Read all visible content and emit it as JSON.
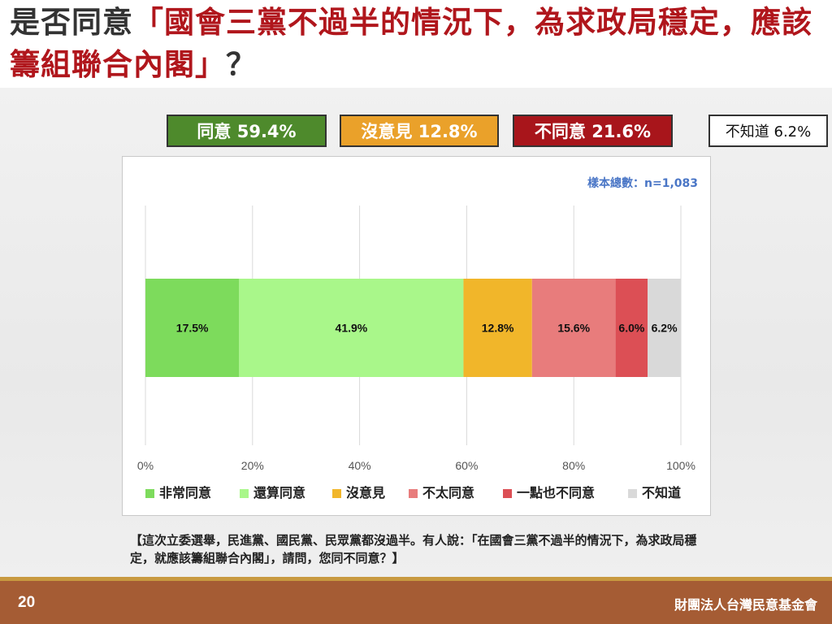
{
  "title": {
    "prefix": "是否同意",
    "quote": "「國會三黨不過半的情況下，為求政局穩定，應該籌組聯合內閣」",
    "suffix": "？"
  },
  "summary": [
    {
      "label": "同意 59.4%",
      "bg": "#4e8a2c",
      "fg": "#ffffff"
    },
    {
      "label": "沒意見 12.8%",
      "bg": "#eaa12a",
      "fg": "#ffffff"
    },
    {
      "label": "不同意 21.6%",
      "bg": "#a8151b",
      "fg": "#ffffff"
    },
    {
      "label": "不知道 6.2%",
      "bg": "#ffffff",
      "fg": "#111111"
    }
  ],
  "sample_note": "樣本總數：n=1,083",
  "question_note": "【這次立委選舉，民進黨、國民黨、民眾黨都沒過半。有人說：「在國會三黨不過半的情況下，為求政局穩定，就應該籌組聯合內閣」，請問，您同不同意？】",
  "page_number": "20",
  "org_name": "財團法人台灣民意基金會",
  "chart_data": {
    "type": "bar",
    "orientation": "horizontal-stacked",
    "xlim": [
      0,
      100
    ],
    "xticks": [
      "0%",
      "20%",
      "40%",
      "60%",
      "80%",
      "100%"
    ],
    "grid": true,
    "legend_position": "bottom",
    "series": [
      {
        "name": "非常同意",
        "value": 17.5,
        "label": "17.5%",
        "color": "#7ddb5c"
      },
      {
        "name": "還算同意",
        "value": 41.9,
        "label": "41.9%",
        "color": "#a9f78a"
      },
      {
        "name": "沒意見",
        "value": 12.8,
        "label": "12.8%",
        "color": "#f1b62a"
      },
      {
        "name": "不太同意",
        "value": 15.6,
        "label": "15.6%",
        "color": "#e87c7c"
      },
      {
        "name": "一點也不同意",
        "value": 6.0,
        "label": "6.0%",
        "color": "#dc4f55"
      },
      {
        "name": "不知道",
        "value": 6.2,
        "label": "6.2%",
        "color": "#d9d9d9"
      }
    ]
  }
}
